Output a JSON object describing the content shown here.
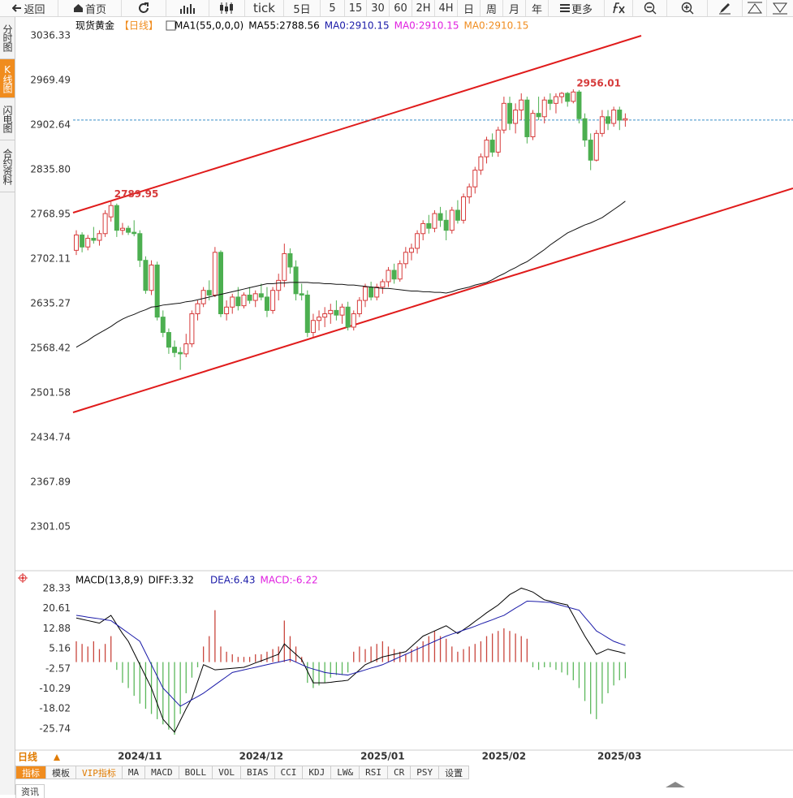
{
  "toolbar": [
    "返回",
    "首页",
    "tick",
    "5日",
    "5",
    "15",
    "30",
    "60",
    "2H",
    "4H",
    "日",
    "周",
    "月",
    "年",
    "更多"
  ],
  "sidebar": [
    "分时图",
    "K线图",
    "闪电图",
    "合约资料"
  ],
  "period_button": "日线",
  "tabs": [
    "指标",
    "模板",
    "VIP指标",
    "MA",
    "MACD",
    "BOLL",
    "VOL",
    "BIAS",
    "CCI",
    "KDJ",
    "LW&",
    "RSI",
    "CR",
    "PSY",
    "设置"
  ],
  "bottom_tab": "资讯",
  "chart_data": [
    {
      "type": "candlestick",
      "legend": [
        {
          "text": "现货黄金",
          "color": "#000000"
        },
        {
          "text": "【日线】",
          "color": "#f08c1e"
        },
        {
          "text": "MA1(55,0,0,0)",
          "color": "#000000"
        },
        {
          "text": "MA55:2788.56",
          "color": "#000000"
        },
        {
          "text": "MA0:2910.15",
          "color": "#1a1aa8"
        },
        {
          "text": "MA0:2910.15",
          "color": "#e020e0"
        },
        {
          "text": "MA0:2910.15",
          "color": "#f08c1e"
        }
      ],
      "categories": [
        null,
        null,
        null,
        null,
        null,
        null,
        null,
        null,
        null,
        null,
        null,
        "2024/11",
        null,
        null,
        null,
        null,
        null,
        null,
        null,
        null,
        null,
        null,
        null,
        null,
        null,
        null,
        null,
        null,
        null,
        null,
        null,
        null,
        "2024/12",
        null,
        null,
        null,
        null,
        null,
        null,
        null,
        null,
        null,
        null,
        null,
        null,
        null,
        null,
        null,
        null,
        null,
        null,
        null,
        null,
        "2025/01",
        null,
        null,
        null,
        null,
        null,
        null,
        null,
        null,
        null,
        null,
        null,
        null,
        null,
        null,
        null,
        null,
        null,
        null,
        null,
        null,
        "2025/02",
        null,
        null,
        null,
        null,
        null,
        null,
        null,
        null,
        null,
        null,
        null,
        null,
        null,
        null,
        null,
        null,
        null,
        null,
        null,
        "2025/03",
        null
      ],
      "open": [
        2715,
        2738,
        2720,
        2733,
        2730,
        2740,
        2765,
        2782,
        2745,
        2748,
        2742,
        2740,
        2700,
        2655,
        2693,
        2615,
        2592,
        2570,
        2562,
        2560,
        2575,
        2620,
        2635,
        2655,
        2648,
        2712,
        2620,
        2630,
        2645,
        2632,
        2648,
        2640,
        2650,
        2645,
        2625,
        2655,
        2670,
        2710,
        2690,
        2650,
        2648,
        2592,
        2610,
        2615,
        2620,
        2625,
        2618,
        2630,
        2600,
        2620,
        2640,
        2660,
        2645,
        2660,
        2668,
        2685,
        2672,
        2695,
        2712,
        2718,
        2740,
        2755,
        2748,
        2770,
        2760,
        2745,
        2775,
        2760,
        2795,
        2810,
        2835,
        2855,
        2880,
        2862,
        2895,
        2935,
        2905,
        2925,
        2940,
        2885,
        2920,
        2915,
        2940,
        2935,
        2945,
        2950,
        2938,
        2952,
        2912,
        2880,
        2850,
        2890,
        2915,
        2905,
        2925,
        2910
      ],
      "high": [
        2745,
        2742,
        2738,
        2750,
        2745,
        2775,
        2789.95,
        2785,
        2756,
        2752,
        2760,
        2745,
        2706,
        2700,
        2698,
        2625,
        2598,
        2580,
        2570,
        2590,
        2625,
        2640,
        2660,
        2670,
        2720,
        2715,
        2640,
        2650,
        2660,
        2652,
        2660,
        2655,
        2665,
        2660,
        2660,
        2680,
        2725,
        2718,
        2700,
        2665,
        2655,
        2620,
        2625,
        2630,
        2635,
        2640,
        2635,
        2638,
        2625,
        2645,
        2665,
        2668,
        2665,
        2672,
        2690,
        2695,
        2700,
        2720,
        2725,
        2745,
        2760,
        2768,
        2775,
        2780,
        2775,
        2780,
        2790,
        2800,
        2815,
        2840,
        2860,
        2885,
        2890,
        2900,
        2945,
        2945,
        2935,
        2950,
        2945,
        2925,
        2945,
        2945,
        2950,
        2950,
        2952,
        2952,
        2956.01,
        2955,
        2920,
        2890,
        2895,
        2925,
        2925,
        2930,
        2930,
        2920
      ],
      "low": [
        2708,
        2712,
        2715,
        2725,
        2722,
        2735,
        2758,
        2735,
        2738,
        2738,
        2736,
        2690,
        2650,
        2648,
        2610,
        2585,
        2560,
        2555,
        2536,
        2555,
        2570,
        2610,
        2630,
        2640,
        2645,
        2615,
        2610,
        2620,
        2625,
        2628,
        2635,
        2630,
        2640,
        2615,
        2620,
        2640,
        2660,
        2680,
        2640,
        2640,
        2585,
        2585,
        2595,
        2600,
        2605,
        2610,
        2605,
        2595,
        2595,
        2615,
        2630,
        2640,
        2640,
        2650,
        2660,
        2665,
        2668,
        2688,
        2700,
        2710,
        2730,
        2740,
        2742,
        2750,
        2730,
        2740,
        2755,
        2755,
        2785,
        2800,
        2828,
        2845,
        2855,
        2855,
        2890,
        2895,
        2890,
        2910,
        2875,
        2880,
        2910,
        2905,
        2925,
        2920,
        2935,
        2930,
        2935,
        2905,
        2870,
        2835,
        2848,
        2885,
        2895,
        2900,
        2895,
        2900
      ],
      "close": [
        2738,
        2720,
        2733,
        2730,
        2740,
        2770,
        2782,
        2745,
        2748,
        2742,
        2740,
        2700,
        2655,
        2693,
        2615,
        2592,
        2570,
        2562,
        2560,
        2575,
        2620,
        2635,
        2655,
        2648,
        2712,
        2620,
        2630,
        2645,
        2632,
        2648,
        2640,
        2650,
        2645,
        2625,
        2655,
        2670,
        2710,
        2690,
        2650,
        2648,
        2592,
        2610,
        2615,
        2620,
        2625,
        2618,
        2630,
        2600,
        2620,
        2640,
        2660,
        2645,
        2660,
        2668,
        2685,
        2672,
        2695,
        2712,
        2718,
        2740,
        2755,
        2748,
        2770,
        2760,
        2745,
        2775,
        2760,
        2795,
        2810,
        2835,
        2855,
        2880,
        2862,
        2895,
        2935,
        2905,
        2925,
        2940,
        2885,
        2920,
        2915,
        2940,
        2935,
        2945,
        2950,
        2938,
        2952,
        2912,
        2880,
        2850,
        2890,
        2915,
        2905,
        2925,
        2910,
        2912
      ],
      "up_color": "#d63a3a",
      "down_color": "#4caf50",
      "ma_line": {
        "color": "#111111",
        "values": [
          2570,
          2575,
          2580,
          2586,
          2591,
          2596,
          2601,
          2607,
          2612,
          2616,
          2619,
          2623,
          2626,
          2630,
          2631,
          2633,
          2634,
          2635,
          2636,
          2638,
          2639,
          2641,
          2643,
          2645,
          2647,
          2649,
          2651,
          2653,
          2655,
          2657,
          2659,
          2661,
          2663,
          2665,
          2665,
          2666,
          2666,
          2667,
          2667,
          2667,
          2667,
          2666,
          2666,
          2665,
          2665,
          2664,
          2664,
          2663,
          2663,
          2662,
          2661,
          2660,
          2659,
          2658,
          2658,
          2657,
          2656,
          2655,
          2654,
          2654,
          2653,
          2653,
          2652,
          2652,
          2651,
          2653,
          2656,
          2658,
          2660,
          2663,
          2665,
          2667,
          2671,
          2676,
          2680,
          2685,
          2689,
          2694,
          2698,
          2704,
          2710,
          2716,
          2723,
          2729,
          2735,
          2741,
          2745,
          2749,
          2753,
          2756,
          2760,
          2764,
          2770,
          2776,
          2782,
          2788.56
        ]
      },
      "annotations": [
        2789.95,
        2956.01
      ],
      "annotation_color": "#d63a3a",
      "price_line": 2910,
      "ylim": [
        2239,
        3063
      ],
      "yticks": [
        3036.33,
        2969.49,
        2902.64,
        {
          "value": 2835.8,
          "label": "2835.80"
        },
        2768.95,
        2702.11,
        2635.27,
        2568.42,
        2501.58,
        2434.74,
        2367.89,
        2301.05
      ],
      "grid": false
    },
    {
      "type": "macd",
      "legend": [
        {
          "text": "MACD(13,8,9)",
          "color": "#000000"
        },
        {
          "text": "DIFF:3.32",
          "color": "#000000"
        },
        {
          "text": "DEA:6.43",
          "color": "#1a1aa8"
        },
        {
          "text": "MACD:-6.22",
          "color": "#e020e0"
        }
      ],
      "diff": {
        "color": "#000000",
        "values": [
          17,
          16.5,
          16,
          15.5,
          15,
          16.5,
          18,
          14.5,
          11,
          8,
          3.5,
          -1,
          -5.5,
          -10,
          -16,
          -22,
          -24.5,
          -27,
          -22.5,
          -18,
          -14,
          -7.5,
          -1,
          -2,
          -3,
          -2.8,
          -2.6,
          -2.4,
          -2.2,
          -2,
          -1.2,
          -0.3,
          0.5,
          1.3,
          2.2,
          3,
          7,
          5,
          3,
          1,
          -3.5,
          -8,
          -8,
          -8,
          -7.8,
          -7.5,
          -7.3,
          -7,
          -5,
          -3,
          -1,
          0,
          1,
          2,
          2.5,
          3,
          3.5,
          4,
          6,
          8,
          10,
          11,
          12,
          13,
          14,
          12.5,
          11,
          12.5,
          14,
          15.7,
          17.3,
          19,
          20.5,
          22,
          24,
          26,
          27.2,
          28.5,
          27.8,
          27,
          25.5,
          24,
          23.5,
          23,
          22.5,
          22,
          18,
          14,
          10,
          6.5,
          3,
          4,
          5,
          4.4,
          3.9,
          3.32
        ]
      },
      "dea": {
        "color": "#1a1aa8",
        "values": [
          18,
          17.7,
          17.3,
          17,
          16.7,
          16.3,
          16,
          14.4,
          12.8,
          11.2,
          9.6,
          8,
          3.5,
          -1,
          -5.5,
          -10,
          -12.3,
          -14.7,
          -17,
          -15.8,
          -14.5,
          -13.3,
          -12,
          -10.4,
          -8.8,
          -7.2,
          -5.6,
          -4,
          -3.5,
          -3,
          -2.5,
          -2,
          -1.5,
          -1,
          -0.5,
          0,
          0.5,
          1,
          0,
          -1,
          -2,
          -2.7,
          -3.3,
          -4,
          -4.3,
          -4.5,
          -4.8,
          -5,
          -4.3,
          -3.7,
          -3,
          -2.3,
          -1.7,
          -1,
          0,
          1,
          2,
          3,
          4,
          5,
          6,
          7,
          8,
          9,
          10,
          10.8,
          11.5,
          12.3,
          13,
          13.8,
          14.7,
          15.5,
          16.3,
          17.2,
          18,
          19.4,
          20.8,
          22.1,
          23.5,
          23.4,
          23.3,
          23.1,
          23,
          22.4,
          21.8,
          21.2,
          20.6,
          20,
          17.3,
          14.7,
          12,
          10.7,
          9.3,
          8,
          7.2,
          6.43
        ]
      },
      "hist": {
        "up_color": "#c9463d",
        "down_color": "#5cb85c",
        "values": [
          8,
          7,
          6,
          8,
          5,
          7,
          10,
          -3,
          -8,
          -10,
          -13,
          -16,
          -18,
          -20,
          -22,
          -24,
          -26,
          -28,
          -20,
          -12,
          -6,
          -2,
          6,
          10,
          20,
          6,
          4,
          3,
          2,
          2,
          2,
          3,
          3,
          4,
          5,
          6,
          16,
          10,
          6,
          2,
          -8,
          -10,
          -9,
          -8,
          -6,
          -5,
          -5,
          -4,
          4,
          6,
          5,
          6,
          7,
          8,
          6,
          5,
          4,
          3,
          5,
          6,
          8,
          10,
          12,
          10,
          9,
          6,
          4,
          5,
          6,
          7,
          8,
          10,
          11,
          12,
          13,
          12,
          11,
          10,
          9,
          -2,
          -3,
          -2,
          -2,
          -3,
          -4,
          -5,
          -7,
          -10,
          -15,
          -20,
          -22,
          -16,
          -12,
          -9,
          -7,
          -6.22
        ]
      },
      "ylim": [
        -34.23,
        34.59
      ],
      "yticks": [
        28.33,
        20.61,
        12.88,
        5.16,
        -2.57,
        -10.29,
        -18.02,
        -25.74
      ]
    }
  ]
}
